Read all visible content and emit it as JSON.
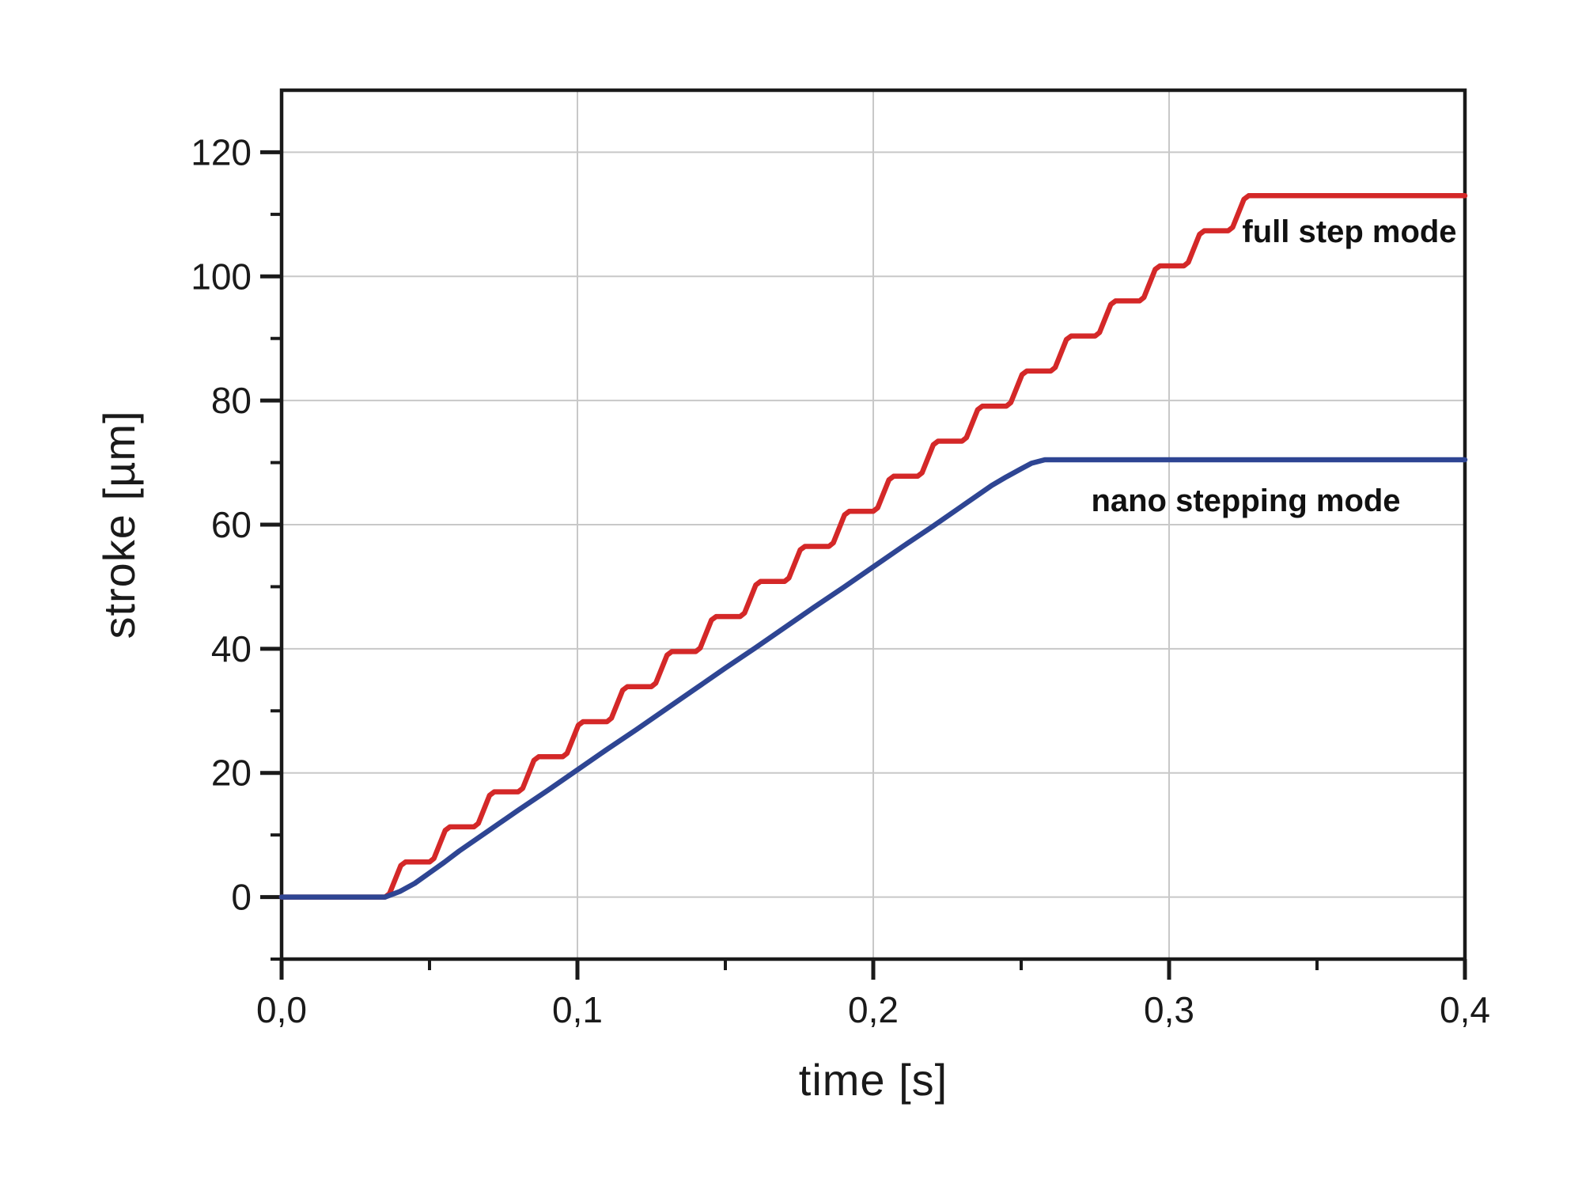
{
  "page": {
    "background": "#ffffff"
  },
  "chart_data": {
    "type": "line",
    "title": "",
    "xlabel": "time [s]",
    "ylabel": "stroke [µm]",
    "xlim": [
      0,
      0.4
    ],
    "ylim": [
      -10,
      130
    ],
    "grid": "major",
    "legend_position": "inline-annotations",
    "colors": {
      "axis": "#1a1a1a",
      "grid": "#c8c8c8",
      "background": "#ffffff"
    },
    "x_ticks": [
      {
        "v": 0.0,
        "label": "0,0"
      },
      {
        "v": 0.1,
        "label": "0,1"
      },
      {
        "v": 0.2,
        "label": "0,2"
      },
      {
        "v": 0.3,
        "label": "0,3"
      },
      {
        "v": 0.4,
        "label": "0,4"
      }
    ],
    "x_minor_ticks": [
      0.05,
      0.15,
      0.25,
      0.35
    ],
    "y_ticks": [
      {
        "v": 0,
        "label": "0"
      },
      {
        "v": 20,
        "label": "20"
      },
      {
        "v": 40,
        "label": "40"
      },
      {
        "v": 60,
        "label": "60"
      },
      {
        "v": 80,
        "label": "80"
      },
      {
        "v": 100,
        "label": "100"
      },
      {
        "v": 120,
        "label": "120"
      }
    ],
    "y_minor_ticks": [
      -10,
      10,
      30,
      50,
      70,
      90,
      110
    ],
    "series": [
      {
        "name": "full step mode",
        "color": "#d42828",
        "shape": "staircase, ~5.65 µm steps every ~0.015 s, plateau 113 µm from t=0.33 s",
        "points": [
          [
            0,
            0
          ],
          [
            0.035,
            0
          ],
          [
            0.0365,
            0.57
          ],
          [
            0.0403,
            5.08
          ],
          [
            0.0419,
            5.65
          ],
          [
            0.05,
            5.65
          ],
          [
            0.0515,
            6.22
          ],
          [
            0.0553,
            10.73
          ],
          [
            0.0569,
            11.3
          ],
          [
            0.065,
            11.3
          ],
          [
            0.0665,
            11.87
          ],
          [
            0.0703,
            16.38
          ],
          [
            0.0719,
            16.95
          ],
          [
            0.08,
            16.95
          ],
          [
            0.0815,
            17.52
          ],
          [
            0.0853,
            22.03
          ],
          [
            0.0869,
            22.6
          ],
          [
            0.095,
            22.6
          ],
          [
            0.0965,
            23.17
          ],
          [
            0.1003,
            27.68
          ],
          [
            0.1019,
            28.25
          ],
          [
            0.11,
            28.25
          ],
          [
            0.1115,
            28.82
          ],
          [
            0.1153,
            33.33
          ],
          [
            0.1169,
            33.9
          ],
          [
            0.125,
            33.9
          ],
          [
            0.1265,
            34.47
          ],
          [
            0.1303,
            38.98
          ],
          [
            0.1319,
            39.55
          ],
          [
            0.14,
            39.55
          ],
          [
            0.1415,
            40.12
          ],
          [
            0.1453,
            44.63
          ],
          [
            0.1469,
            45.2
          ],
          [
            0.155,
            45.2
          ],
          [
            0.1565,
            45.77
          ],
          [
            0.1603,
            50.28
          ],
          [
            0.1619,
            50.85
          ],
          [
            0.17,
            50.85
          ],
          [
            0.1715,
            51.42
          ],
          [
            0.1753,
            55.93
          ],
          [
            0.1769,
            56.5
          ],
          [
            0.185,
            56.5
          ],
          [
            0.1865,
            57.07
          ],
          [
            0.1903,
            61.58
          ],
          [
            0.1919,
            62.15
          ],
          [
            0.2,
            62.15
          ],
          [
            0.2015,
            62.72
          ],
          [
            0.2053,
            67.23
          ],
          [
            0.2069,
            67.8
          ],
          [
            0.215,
            67.8
          ],
          [
            0.2165,
            68.37
          ],
          [
            0.2203,
            72.88
          ],
          [
            0.2219,
            73.45
          ],
          [
            0.23,
            73.45
          ],
          [
            0.2315,
            74.02
          ],
          [
            0.2353,
            78.53
          ],
          [
            0.2369,
            79.1
          ],
          [
            0.245,
            79.1
          ],
          [
            0.2465,
            79.67
          ],
          [
            0.2503,
            84.18
          ],
          [
            0.2519,
            84.75
          ],
          [
            0.26,
            84.75
          ],
          [
            0.2615,
            85.32
          ],
          [
            0.2653,
            89.83
          ],
          [
            0.2669,
            90.4
          ],
          [
            0.275,
            90.4
          ],
          [
            0.2765,
            90.97
          ],
          [
            0.2803,
            95.48
          ],
          [
            0.2819,
            96.05
          ],
          [
            0.29,
            96.05
          ],
          [
            0.2915,
            96.62
          ],
          [
            0.2953,
            101.13
          ],
          [
            0.2969,
            101.7
          ],
          [
            0.305,
            101.7
          ],
          [
            0.3065,
            102.27
          ],
          [
            0.3103,
            106.78
          ],
          [
            0.3119,
            107.35
          ],
          [
            0.32,
            107.35
          ],
          [
            0.3215,
            107.92
          ],
          [
            0.3253,
            112.43
          ],
          [
            0.3269,
            113
          ],
          [
            0.335,
            113
          ],
          [
            0.4,
            113
          ]
        ]
      },
      {
        "name": "nano stepping mode",
        "color": "#2e4593",
        "shape": "smooth ramp, plateau 70.5 µm from t=0.255 s",
        "points": [
          [
            0,
            0
          ],
          [
            0.035,
            0
          ],
          [
            0.04,
            0.9
          ],
          [
            0.045,
            2.2
          ],
          [
            0.05,
            3.9
          ],
          [
            0.055,
            5.6
          ],
          [
            0.06,
            7.4
          ],
          [
            0.07,
            10.7
          ],
          [
            0.08,
            14
          ],
          [
            0.09,
            17.2
          ],
          [
            0.1,
            20.5
          ],
          [
            0.11,
            23.8
          ],
          [
            0.12,
            27
          ],
          [
            0.13,
            30.3
          ],
          [
            0.14,
            33.6
          ],
          [
            0.15,
            36.9
          ],
          [
            0.16,
            40.1
          ],
          [
            0.17,
            43.4
          ],
          [
            0.18,
            46.7
          ],
          [
            0.19,
            49.9
          ],
          [
            0.2,
            53.2
          ],
          [
            0.21,
            56.5
          ],
          [
            0.22,
            59.7
          ],
          [
            0.23,
            63
          ],
          [
            0.24,
            66.3
          ],
          [
            0.245,
            67.7
          ],
          [
            0.25,
            69
          ],
          [
            0.2535,
            69.9
          ],
          [
            0.258,
            70.45
          ],
          [
            0.27,
            70.45
          ],
          [
            0.4,
            70.45
          ]
        ]
      }
    ]
  }
}
